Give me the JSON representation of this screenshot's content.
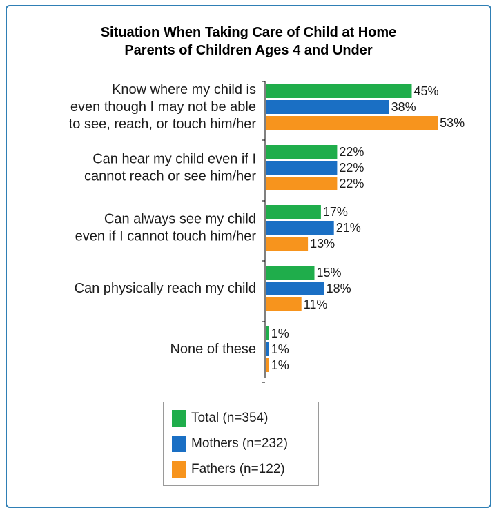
{
  "chart_data": {
    "type": "bar",
    "orientation": "horizontal",
    "title": "Situation When Taking Care of Child at Home",
    "subtitle": "Parents of Children Ages 4 and Under",
    "categories": [
      [
        "Know where my child is",
        "even though I may not be able",
        "to see, reach, or touch him/her"
      ],
      [
        "Can hear my child even if I",
        "cannot reach or see him/her"
      ],
      [
        "Can always see my child",
        "even if I cannot touch him/her"
      ],
      [
        "Can physically reach my child"
      ],
      [
        "None of these"
      ]
    ],
    "series": [
      {
        "name": "Total (n=354)",
        "color": "#1fad4b",
        "values": [
          45,
          22,
          17,
          15,
          1
        ]
      },
      {
        "name": "Mothers (n=232)",
        "color": "#1a6fc4",
        "values": [
          38,
          22,
          21,
          18,
          1
        ]
      },
      {
        "name": "Fathers (n=122)",
        "color": "#f7941d",
        "values": [
          53,
          22,
          13,
          11,
          1
        ]
      }
    ],
    "value_suffix": "%",
    "xlim": [
      0,
      100
    ],
    "grid": false,
    "legend_position": "bottom"
  },
  "colors": {
    "frame": "#2f7fb5",
    "axis": "#000000"
  }
}
